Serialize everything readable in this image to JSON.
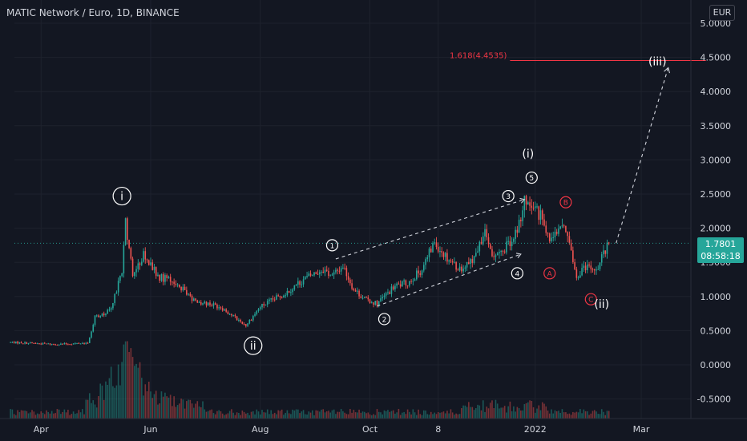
{
  "header": {
    "title": "MATIC Network / Euro, 1D, BINANCE",
    "currency": "EUR"
  },
  "price_badge": {
    "price": "1.7801",
    "countdown": "08:58:18"
  },
  "colors": {
    "background": "#131722",
    "up": "#26a69a",
    "down": "#ef5350",
    "text": "#d1d4dc",
    "fib": "#f23645"
  },
  "chart_data": {
    "type": "candlestick",
    "title": "MATIC Network / Euro, 1D, BINANCE",
    "y_axis": {
      "ticks": [
        5.0,
        4.5,
        4.0,
        3.5,
        3.0,
        2.5,
        2.0,
        1.5,
        1.0,
        0.5,
        0.0,
        -0.5
      ],
      "tick_labels": [
        "5.0000",
        "4.5000",
        "4.0000",
        "3.5000",
        "3.0000",
        "2.5000",
        "2.0000",
        "1.5000",
        "1.0000",
        "0.5000",
        "0.0000",
        "-0.5000"
      ],
      "range": [
        -0.75,
        5.2
      ]
    },
    "x_axis": {
      "ticks": [
        "Apr",
        "Jun",
        "Aug",
        "Oct",
        "8",
        "2022",
        "Mar"
      ],
      "tick_dates": [
        "2021-04-01",
        "2021-06-01",
        "2021-08-01",
        "2021-10-01",
        "2021-11-08",
        "2022-01-01",
        "2022-03-01"
      ],
      "range": [
        "2021-03-12",
        "2022-04-06"
      ]
    },
    "price_path": [
      [
        "2021-03-15",
        0.33
      ],
      [
        "2021-04-10",
        0.3
      ],
      [
        "2021-04-27",
        0.32
      ],
      [
        "2021-05-01",
        0.7
      ],
      [
        "2021-05-10",
        0.8
      ],
      [
        "2021-05-16",
        1.4
      ],
      [
        "2021-05-18",
        2.1
      ],
      [
        "2021-05-22",
        1.35
      ],
      [
        "2021-05-28",
        1.6
      ],
      [
        "2021-06-05",
        1.3
      ],
      [
        "2021-06-15",
        1.2
      ],
      [
        "2021-06-25",
        0.95
      ],
      [
        "2021-07-10",
        0.85
      ],
      [
        "2021-07-20",
        0.65
      ],
      [
        "2021-07-24",
        0.58
      ],
      [
        "2021-08-01",
        0.85
      ],
      [
        "2021-08-15",
        1.05
      ],
      [
        "2021-08-25",
        1.25
      ],
      [
        "2021-09-05",
        1.4
      ],
      [
        "2021-09-10",
        1.3
      ],
      [
        "2021-09-16",
        1.45
      ],
      [
        "2021-09-22",
        1.1
      ],
      [
        "2021-09-29",
        0.95
      ],
      [
        "2021-10-05",
        0.9
      ],
      [
        "2021-10-15",
        1.15
      ],
      [
        "2021-10-22",
        1.2
      ],
      [
        "2021-10-30",
        1.4
      ],
      [
        "2021-11-06",
        1.8
      ],
      [
        "2021-11-12",
        1.6
      ],
      [
        "2021-11-20",
        1.4
      ],
      [
        "2021-11-28",
        1.55
      ],
      [
        "2021-12-04",
        1.9
      ],
      [
        "2021-12-08",
        1.6
      ],
      [
        "2021-12-14",
        1.7
      ],
      [
        "2021-12-20",
        1.8
      ],
      [
        "2021-12-26",
        2.4
      ],
      [
        "2021-12-29",
        2.3
      ],
      [
        "2022-01-04",
        2.2
      ],
      [
        "2022-01-09",
        1.75
      ],
      [
        "2022-01-13",
        2.0
      ],
      [
        "2022-01-17",
        2.05
      ],
      [
        "2022-01-20",
        1.75
      ],
      [
        "2022-01-24",
        1.25
      ],
      [
        "2022-01-28",
        1.45
      ],
      [
        "2022-02-05",
        1.42
      ],
      [
        "2022-02-09",
        1.7
      ],
      [
        "2022-02-11",
        1.78
      ]
    ],
    "volume_peak_date": "2021-05-19",
    "fib_level": {
      "label": "1.618(4.4535)",
      "value": 4.4535,
      "start": "2021-12-18",
      "end": "2022-04-06"
    },
    "wave_labels": [
      {
        "text": "i",
        "style": "circle",
        "date": "2021-05-16",
        "price": 2.47
      },
      {
        "text": "ii",
        "style": "circle",
        "date": "2021-07-28",
        "price": 0.28
      },
      {
        "text": "1",
        "style": "circle-small",
        "date": "2021-09-10",
        "price": 1.75
      },
      {
        "text": "2",
        "style": "circle-small",
        "date": "2021-10-09",
        "price": 0.67
      },
      {
        "text": "3",
        "style": "circle-small",
        "date": "2021-12-17",
        "price": 2.47
      },
      {
        "text": "4",
        "style": "circle-small",
        "date": "2021-12-22",
        "price": 1.34
      },
      {
        "text": "5",
        "style": "circle-small",
        "date": "2021-12-30",
        "price": 2.74
      },
      {
        "text": "(i)",
        "style": "plain",
        "date": "2021-12-28",
        "price": 3.09
      },
      {
        "text": "A",
        "style": "circle-red",
        "date": "2022-01-09",
        "price": 1.34
      },
      {
        "text": "B",
        "style": "circle-red",
        "date": "2022-01-18",
        "price": 2.38
      },
      {
        "text": "C",
        "style": "circle-red",
        "date": "2022-02-01",
        "price": 0.96
      },
      {
        "text": "(ii)",
        "style": "plain",
        "date": "2022-02-07",
        "price": 0.89
      },
      {
        "text": "(iii)",
        "style": "plain",
        "date": "2022-03-10",
        "price": 4.44
      }
    ],
    "channel": {
      "upper": [
        [
          "2021-09-12",
          1.55
        ],
        [
          "2021-12-26",
          2.42
        ]
      ],
      "lower": [
        [
          "2021-10-05",
          0.86
        ],
        [
          "2021-12-24",
          1.62
        ]
      ]
    },
    "projection_arrow": [
      [
        "2022-02-15",
        1.78
      ],
      [
        "2022-03-16",
        4.35
      ]
    ]
  }
}
